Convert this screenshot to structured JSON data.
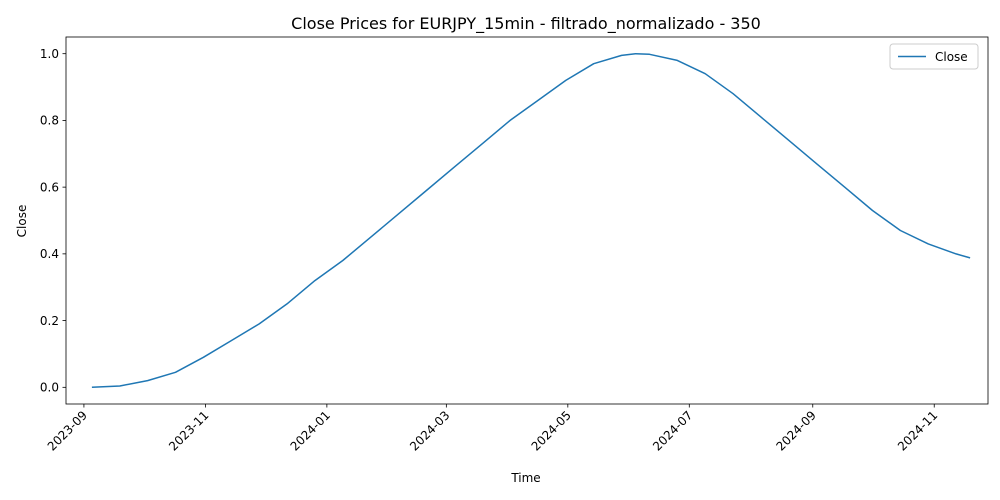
{
  "chart_data": {
    "type": "line",
    "title": "Close Prices for EURJPY_15min - filtrado_normalizado - 350",
    "xlabel": "Time",
    "ylabel": "Close",
    "xlim": [
      "2023-08-23",
      "2024-11-28"
    ],
    "ylim": [
      -0.05,
      1.05
    ],
    "xticks": [
      "2023-09",
      "2023-11",
      "2024-01",
      "2024-03",
      "2024-05",
      "2024-07",
      "2024-09",
      "2024-11"
    ],
    "xtick_dates": [
      "2023-09-01",
      "2023-11-01",
      "2024-01-01",
      "2024-03-01",
      "2024-05-01",
      "2024-07-01",
      "2024-09-01",
      "2024-11-01"
    ],
    "yticks": [
      "0.0",
      "0.2",
      "0.4",
      "0.6",
      "0.8",
      "1.0"
    ],
    "ytick_values": [
      0.0,
      0.2,
      0.4,
      0.6,
      0.8,
      1.0
    ],
    "grid": false,
    "legend": {
      "position": "top-right",
      "entries": [
        "Close"
      ]
    },
    "colors": {
      "Close": "#1f77b4"
    },
    "series": [
      {
        "name": "Close",
        "x": [
          "2023-09-05",
          "2023-09-19",
          "2023-10-03",
          "2023-10-17",
          "2023-10-31",
          "2023-11-14",
          "2023-11-28",
          "2023-12-12",
          "2023-12-26",
          "2024-01-09",
          "2024-01-23",
          "2024-02-06",
          "2024-02-20",
          "2024-03-05",
          "2024-03-19",
          "2024-04-02",
          "2024-04-16",
          "2024-04-30",
          "2024-05-14",
          "2024-05-28",
          "2024-06-04",
          "2024-06-11",
          "2024-06-25",
          "2024-07-09",
          "2024-07-23",
          "2024-08-06",
          "2024-08-20",
          "2024-09-03",
          "2024-09-17",
          "2024-10-01",
          "2024-10-15",
          "2024-10-29",
          "2024-11-12",
          "2024-11-19"
        ],
        "values": [
          0.0,
          0.004,
          0.02,
          0.045,
          0.09,
          0.14,
          0.19,
          0.25,
          0.32,
          0.38,
          0.45,
          0.52,
          0.59,
          0.66,
          0.73,
          0.8,
          0.86,
          0.92,
          0.97,
          0.995,
          1.0,
          0.998,
          0.98,
          0.94,
          0.88,
          0.81,
          0.74,
          0.67,
          0.6,
          0.53,
          0.47,
          0.43,
          0.4,
          0.388
        ]
      }
    ]
  }
}
